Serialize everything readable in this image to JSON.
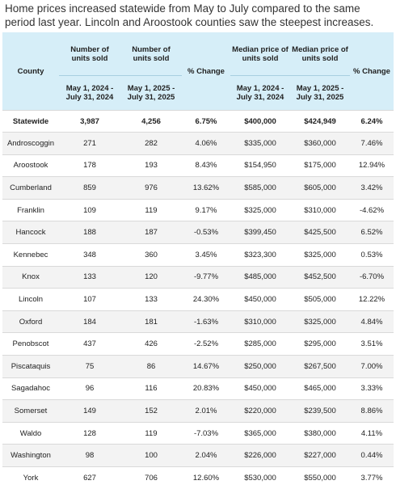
{
  "caption": "Home prices increased statewide from May to July compared to the same period last year. Lincoln and Aroostook counties saw the steepest increases.",
  "headers": {
    "county": "County",
    "units_label": "Number of units sold",
    "pct_label": "% Change",
    "median_label": "Median price of units sold",
    "period_2024": "May 1, 2024 - July 31, 2024",
    "period_2025": "May 1, 2025 - July 31, 2025",
    "median_period_2024": "May 1, 2024 - July 31, 2024",
    "median_period_2025": "May 1, 2025 - July 31, 2025"
  },
  "rows": [
    {
      "county": "Statewide",
      "units_2024": "3,987",
      "units_2025": "4,256",
      "units_change": "6.75%",
      "price_2024": "$400,000",
      "price_2025": "$424,949",
      "price_change": "6.24%"
    },
    {
      "county": "Androscoggin",
      "units_2024": "271",
      "units_2025": "282",
      "units_change": "4.06%",
      "price_2024": "$335,000",
      "price_2025": "$360,000",
      "price_change": "7.46%"
    },
    {
      "county": "Aroostook",
      "units_2024": "178",
      "units_2025": "193",
      "units_change": "8.43%",
      "price_2024": "$154,950",
      "price_2025": "$175,000",
      "price_change": "12.94%"
    },
    {
      "county": "Cumberland",
      "units_2024": "859",
      "units_2025": "976",
      "units_change": "13.62%",
      "price_2024": "$585,000",
      "price_2025": "$605,000",
      "price_change": "3.42%"
    },
    {
      "county": "Franklin",
      "units_2024": "109",
      "units_2025": "119",
      "units_change": "9.17%",
      "price_2024": "$325,000",
      "price_2025": "$310,000",
      "price_change": "-4.62%"
    },
    {
      "county": "Hancock",
      "units_2024": "188",
      "units_2025": "187",
      "units_change": "-0.53%",
      "price_2024": "$399,450",
      "price_2025": "$425,500",
      "price_change": "6.52%"
    },
    {
      "county": "Kennebec",
      "units_2024": "348",
      "units_2025": "360",
      "units_change": "3.45%",
      "price_2024": "$323,300",
      "price_2025": "$325,000",
      "price_change": "0.53%"
    },
    {
      "county": "Knox",
      "units_2024": "133",
      "units_2025": "120",
      "units_change": "-9.77%",
      "price_2024": "$485,000",
      "price_2025": "$452,500",
      "price_change": "-6.70%"
    },
    {
      "county": "Lincoln",
      "units_2024": "107",
      "units_2025": "133",
      "units_change": "24.30%",
      "price_2024": "$450,000",
      "price_2025": "$505,000",
      "price_change": "12.22%"
    },
    {
      "county": "Oxford",
      "units_2024": "184",
      "units_2025": "181",
      "units_change": "-1.63%",
      "price_2024": "$310,000",
      "price_2025": "$325,000",
      "price_change": "4.84%"
    },
    {
      "county": "Penobscot",
      "units_2024": "437",
      "units_2025": "426",
      "units_change": "-2.52%",
      "price_2024": "$285,000",
      "price_2025": "$295,000",
      "price_change": "3.51%"
    },
    {
      "county": "Piscataquis",
      "units_2024": "75",
      "units_2025": "86",
      "units_change": "14.67%",
      "price_2024": "$250,000",
      "price_2025": "$267,500",
      "price_change": "7.00%"
    },
    {
      "county": "Sagadahoc",
      "units_2024": "96",
      "units_2025": "116",
      "units_change": "20.83%",
      "price_2024": "$450,000",
      "price_2025": "$465,000",
      "price_change": "3.33%"
    },
    {
      "county": "Somerset",
      "units_2024": "149",
      "units_2025": "152",
      "units_change": "2.01%",
      "price_2024": "$220,000",
      "price_2025": "$239,500",
      "price_change": "8.86%"
    },
    {
      "county": "Waldo",
      "units_2024": "128",
      "units_2025": "119",
      "units_change": "-7.03%",
      "price_2024": "$365,000",
      "price_2025": "$380,000",
      "price_change": "4.11%"
    },
    {
      "county": "Washington",
      "units_2024": "98",
      "units_2025": "100",
      "units_change": "2.04%",
      "price_2024": "$226,000",
      "price_2025": "$227,000",
      "price_change": "0.44%"
    },
    {
      "county": "York",
      "units_2024": "627",
      "units_2025": "706",
      "units_change": "12.60%",
      "price_2024": "$530,000",
      "price_2025": "$550,000",
      "price_change": "3.77%"
    }
  ]
}
